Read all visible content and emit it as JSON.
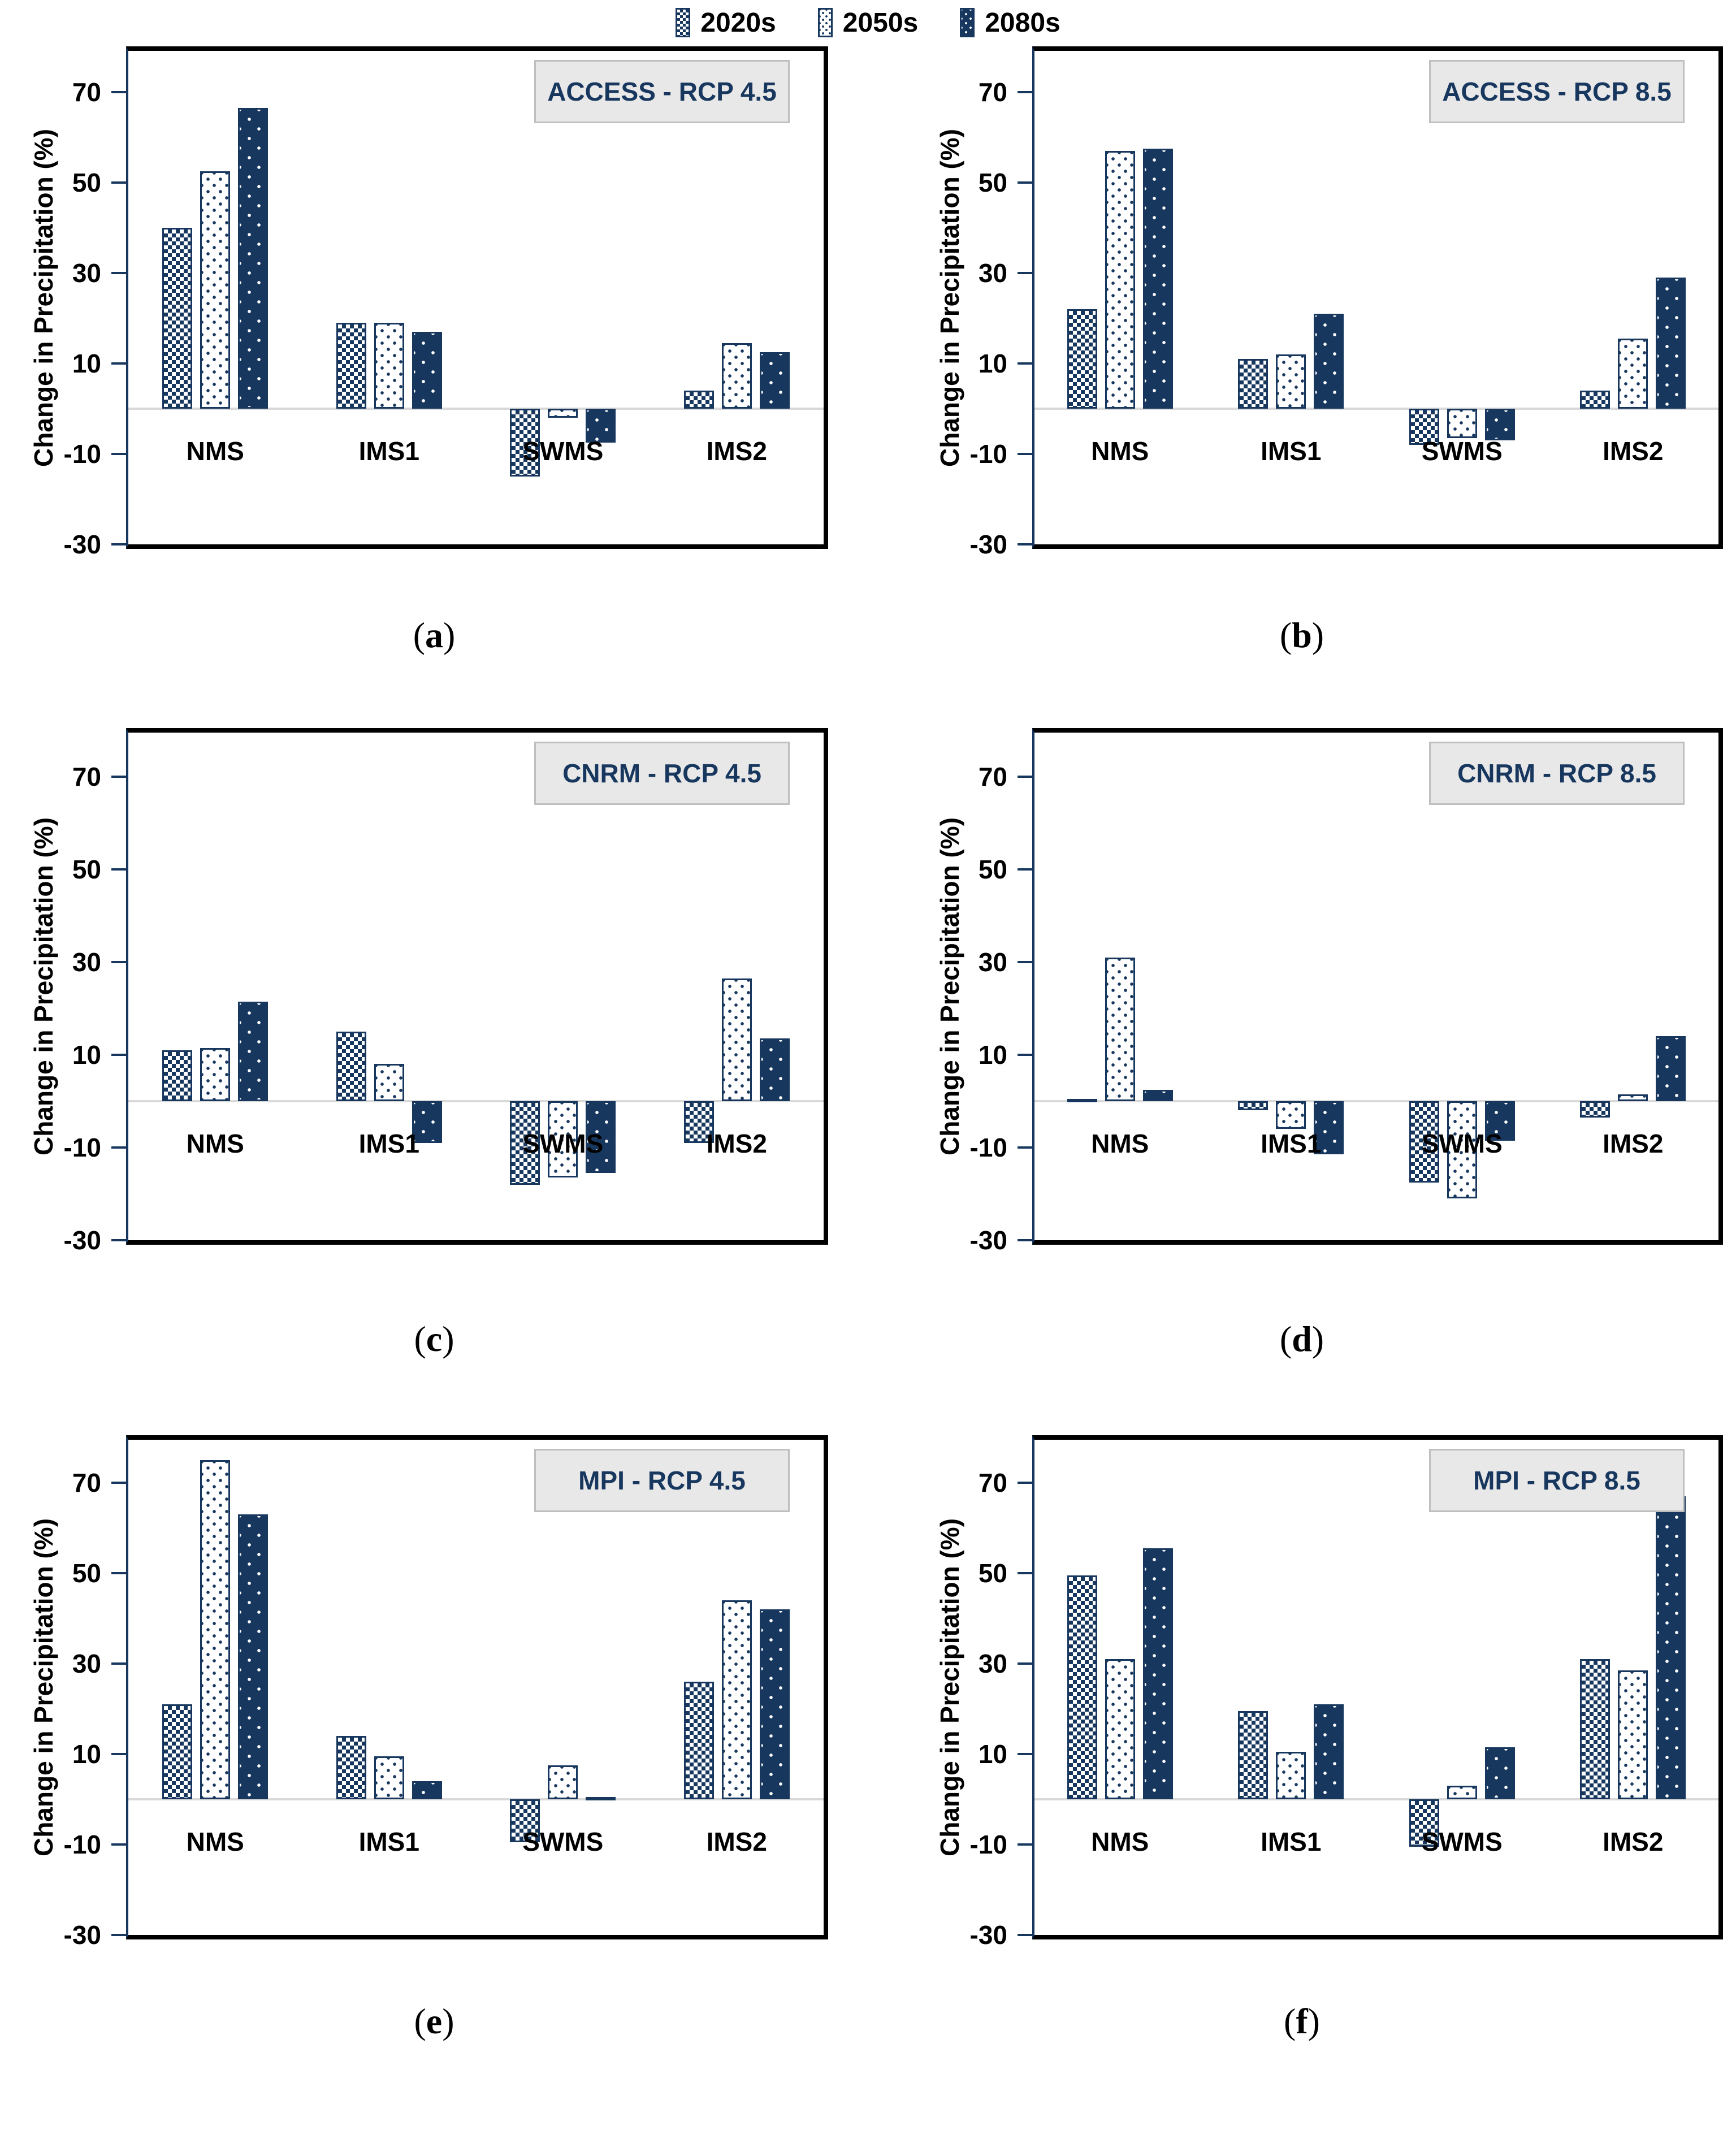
{
  "figure": {
    "ylabel": "Change in Precipitation (%)",
    "categories": [
      "NMS",
      "IMS1",
      "SWMS",
      "IMS2"
    ],
    "series_names": [
      "2020s",
      "2050s",
      "2080s"
    ],
    "yticks": [
      70,
      50,
      30,
      10,
      -10,
      -30
    ],
    "ylim": [
      -30,
      79.5
    ],
    "grid": "zero-line-only",
    "legend_position": "bottom-center"
  },
  "chart_data": [
    {
      "type": "bar",
      "title": "ACCESS - RCP 4.5",
      "panel_caption": {
        "pre": "(",
        "letter": "a",
        "post": ")"
      },
      "categories": [
        "NMS",
        "IMS1",
        "SWMS",
        "IMS2"
      ],
      "series": [
        {
          "name": "2020s",
          "values": [
            40,
            19,
            -15,
            4
          ]
        },
        {
          "name": "2050s",
          "values": [
            52.5,
            19,
            -2,
            14.5
          ]
        },
        {
          "name": "2080s",
          "values": [
            66.5,
            17,
            -7.5,
            12.5
          ]
        }
      ],
      "xlabel": "",
      "ylabel": "Change in Precipitation (%)",
      "yticks": [
        70,
        50,
        30,
        10,
        -10,
        -30
      ],
      "ylim": [
        -30,
        79.5
      ]
    },
    {
      "type": "bar",
      "title": "ACCESS - RCP 8.5",
      "panel_caption": {
        "pre": "(",
        "letter": "b",
        "post": ")"
      },
      "categories": [
        "NMS",
        "IMS1",
        "SWMS",
        "IMS2"
      ],
      "series": [
        {
          "name": "2020s",
          "values": [
            22,
            11,
            -8,
            4
          ]
        },
        {
          "name": "2050s",
          "values": [
            57,
            12,
            -6.5,
            15.5
          ]
        },
        {
          "name": "2080s",
          "values": [
            57.5,
            21,
            -7,
            29
          ]
        }
      ],
      "xlabel": "",
      "ylabel": "Change in Precipitation (%)",
      "yticks": [
        70,
        50,
        30,
        10,
        -10,
        -30
      ],
      "ylim": [
        -30,
        79.5
      ]
    },
    {
      "type": "bar",
      "title": "CNRM - RCP 4.5",
      "panel_caption": {
        "pre": "(",
        "letter": "c",
        "post": ")"
      },
      "categories": [
        "NMS",
        "IMS1",
        "SWMS",
        "IMS2"
      ],
      "series": [
        {
          "name": "2020s",
          "values": [
            11,
            15,
            -18,
            -9
          ]
        },
        {
          "name": "2050s",
          "values": [
            11.5,
            8,
            -16.5,
            26.5
          ]
        },
        {
          "name": "2080s",
          "values": [
            21.5,
            -9,
            -15.5,
            13.5
          ]
        }
      ],
      "xlabel": "",
      "ylabel": "Change in Precipitation (%)",
      "yticks": [
        70,
        50,
        30,
        10,
        -10,
        -30
      ],
      "ylim": [
        -30,
        79.5
      ]
    },
    {
      "type": "bar",
      "title": "CNRM - RCP 8.5",
      "panel_caption": {
        "pre": "(",
        "letter": "d",
        "post": ")"
      },
      "categories": [
        "NMS",
        "IMS1",
        "SWMS",
        "IMS2"
      ],
      "series": [
        {
          "name": "2020s",
          "values": [
            0.5,
            -2,
            -17.5,
            -3.5
          ]
        },
        {
          "name": "2050s",
          "values": [
            31,
            -6,
            -21,
            1.5
          ]
        },
        {
          "name": "2080s",
          "values": [
            2.5,
            -11.5,
            -8.5,
            14
          ]
        }
      ],
      "xlabel": "",
      "ylabel": "Change in Precipitation (%)",
      "yticks": [
        70,
        50,
        30,
        10,
        -10,
        -30
      ],
      "ylim": [
        -30,
        79.5
      ]
    },
    {
      "type": "bar",
      "title": "MPI - RCP 4.5",
      "panel_caption": {
        "pre": "(",
        "letter": "e",
        "post": ")"
      },
      "categories": [
        "NMS",
        "IMS1",
        "SWMS",
        "IMS2"
      ],
      "series": [
        {
          "name": "2020s",
          "values": [
            21,
            14,
            -9.5,
            26
          ]
        },
        {
          "name": "2050s",
          "values": [
            75,
            9.5,
            7.5,
            44
          ]
        },
        {
          "name": "2080s",
          "values": [
            63,
            4,
            0.5,
            42
          ]
        }
      ],
      "xlabel": "",
      "ylabel": "Change in Precipitation (%)",
      "yticks": [
        70,
        50,
        30,
        10,
        -10,
        -30
      ],
      "ylim": [
        -30,
        79.5
      ]
    },
    {
      "type": "bar",
      "title": "MPI - RCP 8.5",
      "panel_caption": {
        "pre": "(",
        "letter": "f",
        "post": ")"
      },
      "categories": [
        "NMS",
        "IMS1",
        "SWMS",
        "IMS2"
      ],
      "series": [
        {
          "name": "2020s",
          "values": [
            49.5,
            19.5,
            -10.5,
            31
          ]
        },
        {
          "name": "2050s",
          "values": [
            31,
            10.5,
            3,
            28.5
          ]
        },
        {
          "name": "2080s",
          "values": [
            55.5,
            21,
            11.5,
            67
          ]
        }
      ],
      "xlabel": "",
      "ylabel": "Change in Precipitation (%)",
      "yticks": [
        70,
        50,
        30,
        10,
        -10,
        -30
      ],
      "ylim": [
        -30,
        79.5
      ]
    }
  ],
  "legend": {
    "items": [
      {
        "label": "2020s",
        "pattern": "checkerboard"
      },
      {
        "label": "2050s",
        "pattern": "light-dots"
      },
      {
        "label": "2080s",
        "pattern": "dark-dots"
      }
    ]
  },
  "colors": {
    "navy": "#17375E",
    "grid_zero_line": "#D9D9D9",
    "plot_border": "#000000",
    "title_box_bg": "#E9E8E8",
    "title_box_border": "#BFBFBF",
    "text": "#000000"
  }
}
